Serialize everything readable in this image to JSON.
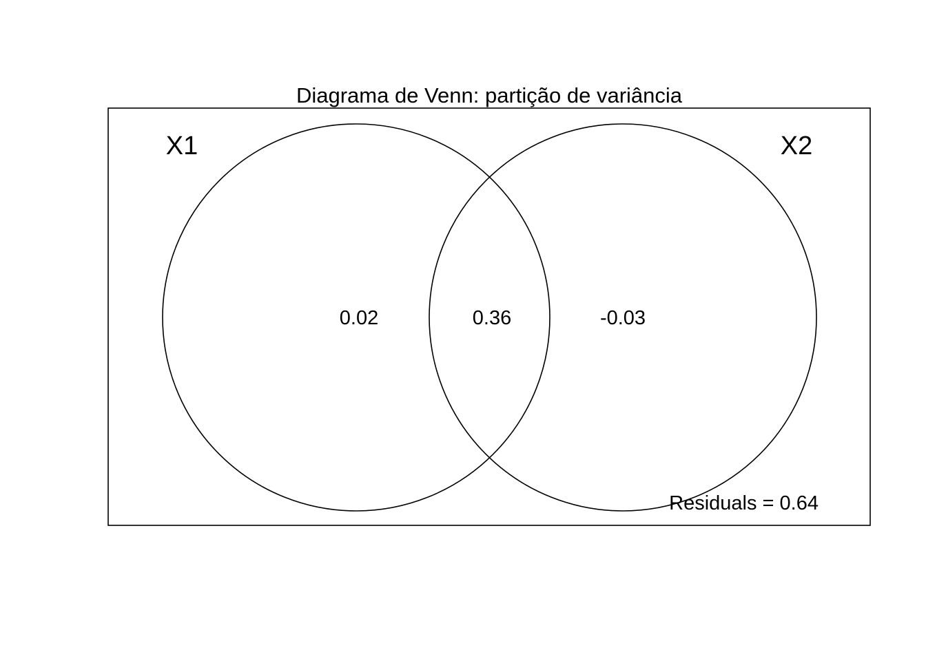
{
  "diagram": {
    "title": "Diagrama de Venn: partição de variância",
    "sets": [
      {
        "label": "X1"
      },
      {
        "label": "X2"
      }
    ],
    "regions": {
      "x1_only": "0.02",
      "shared": "0.36",
      "x2_only": "-0.03"
    },
    "residuals": "Residuals =  0.64",
    "colors": {
      "stroke": "#000000",
      "background": "#ffffff"
    }
  }
}
